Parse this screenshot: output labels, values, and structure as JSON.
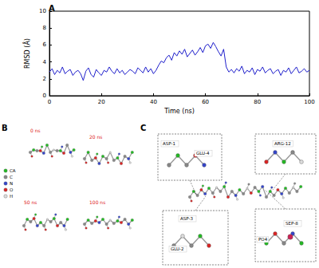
{
  "chart_data": {
    "type": "line",
    "title": "A",
    "xlabel": "Time (ns)",
    "ylabel": "RMSD (Å)",
    "x": [
      0,
      1,
      2,
      3,
      4,
      5,
      6,
      7,
      8,
      9,
      10,
      11,
      12,
      13,
      14,
      15,
      16,
      17,
      18,
      19,
      20,
      21,
      22,
      23,
      24,
      25,
      26,
      27,
      28,
      29,
      30,
      31,
      32,
      33,
      34,
      35,
      36,
      37,
      38,
      39,
      40,
      41,
      42,
      43,
      44,
      45,
      46,
      47,
      48,
      49,
      50,
      51,
      52,
      53,
      54,
      55,
      56,
      57,
      58,
      59,
      60,
      61,
      62,
      63,
      64,
      65,
      66,
      67,
      68,
      69,
      70,
      71,
      72,
      73,
      74,
      75,
      76,
      77,
      78,
      79,
      80,
      81,
      82,
      83,
      84,
      85,
      86,
      87,
      88,
      89,
      90,
      91,
      92,
      93,
      94,
      95,
      96,
      97,
      98,
      99,
      100
    ],
    "values": [
      2.8,
      3.2,
      2.5,
      3.0,
      2.7,
      3.4,
      2.6,
      2.9,
      3.1,
      2.4,
      2.8,
      3.0,
      2.6,
      1.8,
      2.9,
      3.3,
      2.5,
      2.2,
      3.1,
      2.7,
      2.4,
      3.0,
      2.8,
      3.4,
      2.9,
      2.6,
      3.2,
      2.7,
      3.0,
      2.5,
      2.8,
      3.1,
      2.9,
      2.6,
      3.3,
      3.0,
      2.7,
      3.4,
      2.8,
      3.2,
      2.6,
      3.0,
      3.6,
      4.1,
      3.9,
      4.5,
      4.8,
      4.2,
      5.1,
      4.7,
      5.3,
      4.9,
      5.5,
      4.6,
      5.0,
      5.4,
      4.8,
      5.2,
      5.7,
      5.1,
      5.9,
      6.1,
      5.6,
      6.3,
      5.8,
      5.2,
      4.7,
      5.5,
      3.4,
      2.8,
      3.1,
      2.7,
      3.2,
      2.9,
      3.5,
      2.6,
      3.0,
      2.8,
      3.3,
      2.5,
      3.1,
      2.9,
      3.4,
      2.7,
      3.0,
      3.2,
      2.6,
      2.9,
      3.1,
      2.4,
      3.0,
      2.8,
      3.3,
      2.6,
      3.0,
      3.4,
      2.7,
      2.9,
      3.2,
      2.8,
      3.0
    ],
    "color": "#1f1fcc",
    "xlim": [
      0,
      100
    ],
    "xticks": [
      0,
      20,
      40,
      60,
      80,
      100
    ],
    "ylim": [
      0,
      10
    ],
    "yticks": [
      0,
      2,
      4,
      6,
      8,
      10
    ],
    "grid": false
  },
  "panel_b": {
    "label": "B",
    "frames": [
      "0 ns",
      "20 ns",
      "50 ns",
      "100 ns"
    ],
    "legend": [
      {
        "name": "CA",
        "color": "#22bb22"
      },
      {
        "name": "C",
        "color": "#888888"
      },
      {
        "name": "N",
        "color": "#3344cc"
      },
      {
        "name": "O",
        "color": "#dd2222"
      },
      {
        "name": "H",
        "color": "#dddddd"
      }
    ]
  },
  "panel_c": {
    "label": "C",
    "residues": [
      "ASP-1",
      "GLU-4",
      "ARG-12",
      "ASP-3",
      "GLU-2",
      "SEP-8",
      "PO4"
    ]
  }
}
